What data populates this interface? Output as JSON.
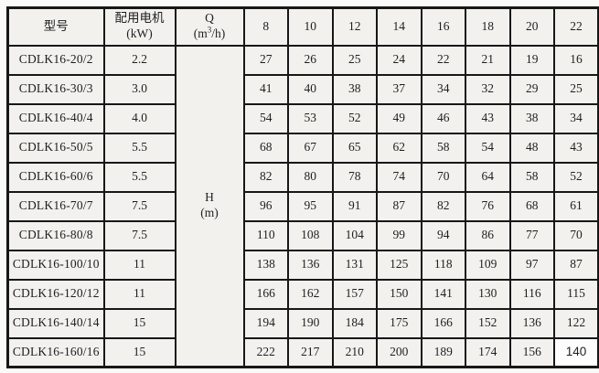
{
  "table": {
    "columns": {
      "model_label": "型号",
      "motor_line1": "配用电机",
      "motor_line2": "(kW)",
      "q_letter": "Q",
      "q_unit_open": "(m",
      "q_unit_sup": "3",
      "q_unit_close": "/h)"
    },
    "flow_headers": [
      "8",
      "10",
      "12",
      "14",
      "16",
      "18",
      "20",
      "22"
    ],
    "head_unit": {
      "letter": "H",
      "unit": "(m)"
    },
    "rows": [
      {
        "model": "CDLK16-20/2",
        "power": "2.2",
        "heads": [
          "27",
          "26",
          "25",
          "24",
          "22",
          "21",
          "19",
          "16"
        ]
      },
      {
        "model": "CDLK16-30/3",
        "power": "3.0",
        "heads": [
          "41",
          "40",
          "38",
          "37",
          "34",
          "32",
          "29",
          "25"
        ]
      },
      {
        "model": "CDLK16-40/4",
        "power": "4.0",
        "heads": [
          "54",
          "53",
          "52",
          "49",
          "46",
          "43",
          "38",
          "34"
        ]
      },
      {
        "model": "CDLK16-50/5",
        "power": "5.5",
        "heads": [
          "68",
          "67",
          "65",
          "62",
          "58",
          "54",
          "48",
          "43"
        ]
      },
      {
        "model": "CDLK16-60/6",
        "power": "5.5",
        "heads": [
          "82",
          "80",
          "78",
          "74",
          "70",
          "64",
          "58",
          "52"
        ]
      },
      {
        "model": "CDLK16-70/7",
        "power": "7.5",
        "heads": [
          "96",
          "95",
          "91",
          "87",
          "82",
          "76",
          "68",
          "61"
        ]
      },
      {
        "model": "CDLK16-80/8",
        "power": "7.5",
        "heads": [
          "110",
          "108",
          "104",
          "99",
          "94",
          "86",
          "77",
          "70"
        ]
      },
      {
        "model": "CDLK16-100/10",
        "power": "11",
        "heads": [
          "138",
          "136",
          "131",
          "125",
          "118",
          "109",
          "97",
          "87"
        ]
      },
      {
        "model": "CDLK16-120/12",
        "power": "11",
        "heads": [
          "166",
          "162",
          "157",
          "150",
          "141",
          "130",
          "116",
          "115"
        ]
      },
      {
        "model": "CDLK16-140/14",
        "power": "15",
        "heads": [
          "194",
          "190",
          "184",
          "175",
          "166",
          "152",
          "136",
          "122"
        ]
      },
      {
        "model": "CDLK16-160/16",
        "power": "15",
        "heads": [
          "222",
          "217",
          "210",
          "200",
          "189",
          "174",
          "156",
          "140"
        ]
      }
    ],
    "colors": {
      "border": "#171717",
      "cell_background": "#f2f1ee",
      "page_background": "#fafaf8",
      "patched_cell_background": "#fdfdfd",
      "text": "#1f1f1f"
    }
  }
}
